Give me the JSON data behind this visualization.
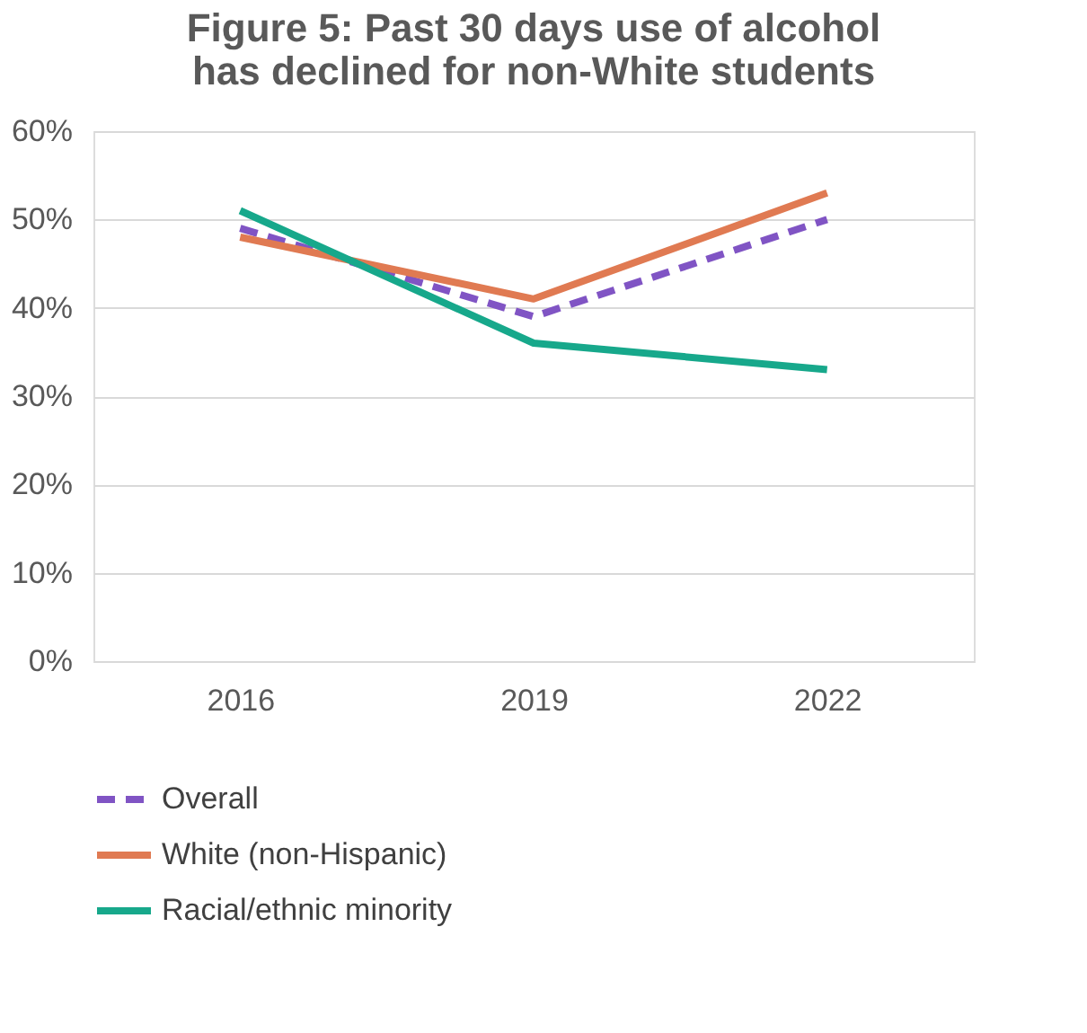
{
  "chart_data": {
    "type": "line",
    "title": "Figure 5: Past 30 days use of alcohol has declined for non-White students",
    "categories": [
      "2016",
      "2019",
      "2022"
    ],
    "series": [
      {
        "name": "Overall",
        "color": "#8054c4",
        "line_style": "dashed",
        "values": [
          49,
          39,
          50
        ]
      },
      {
        "name": "White (non-Hispanic)",
        "color": "#e07a52",
        "line_style": "solid",
        "values": [
          48,
          41,
          53
        ]
      },
      {
        "name": "Racial/ethnic minority",
        "color": "#17a88b",
        "line_style": "solid",
        "values": [
          51,
          36,
          33
        ]
      }
    ],
    "ylim": [
      0,
      60
    ],
    "yticks": [
      {
        "value": 0,
        "label": "0%"
      },
      {
        "value": 10,
        "label": "10%"
      },
      {
        "value": 20,
        "label": "20%"
      },
      {
        "value": 30,
        "label": "30%"
      },
      {
        "value": 40,
        "label": "40%"
      },
      {
        "value": 50,
        "label": "50%"
      },
      {
        "value": 60,
        "label": "60%"
      }
    ],
    "grid": "y",
    "legend": "bottom",
    "marker": "none"
  }
}
